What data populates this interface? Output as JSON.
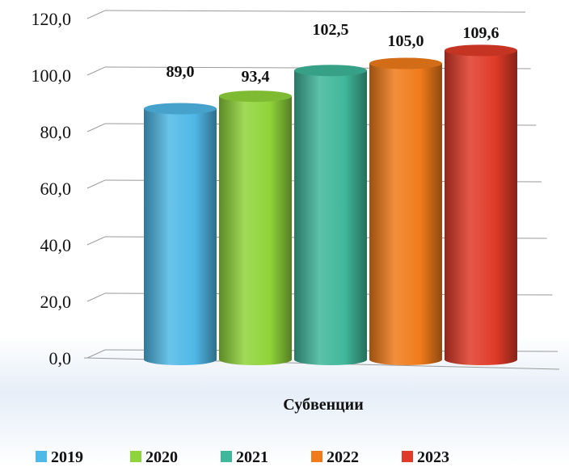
{
  "chart_data": {
    "type": "bar",
    "category": "Субвенции",
    "ylim": [
      0,
      120
    ],
    "ytick_step": 20,
    "ytick_labels": [
      "0,0",
      "20,0",
      "40,0",
      "60,0",
      "80,0",
      "100,0",
      "120,0"
    ],
    "grid": true,
    "legend_position": "bottom",
    "series": [
      {
        "name": "2019",
        "value": 89.0,
        "label": "89,0",
        "color": "#4fb8e6"
      },
      {
        "name": "2020",
        "value": 93.4,
        "label": "93,4",
        "color": "#8fd43a"
      },
      {
        "name": "2021",
        "value": 102.5,
        "label": "102,5",
        "color": "#3fb79a"
      },
      {
        "name": "2022",
        "value": 105.0,
        "label": "105,0",
        "color": "#f07b1a"
      },
      {
        "name": "2023",
        "value": 109.6,
        "label": "109,6",
        "color": "#e03a28"
      }
    ]
  }
}
